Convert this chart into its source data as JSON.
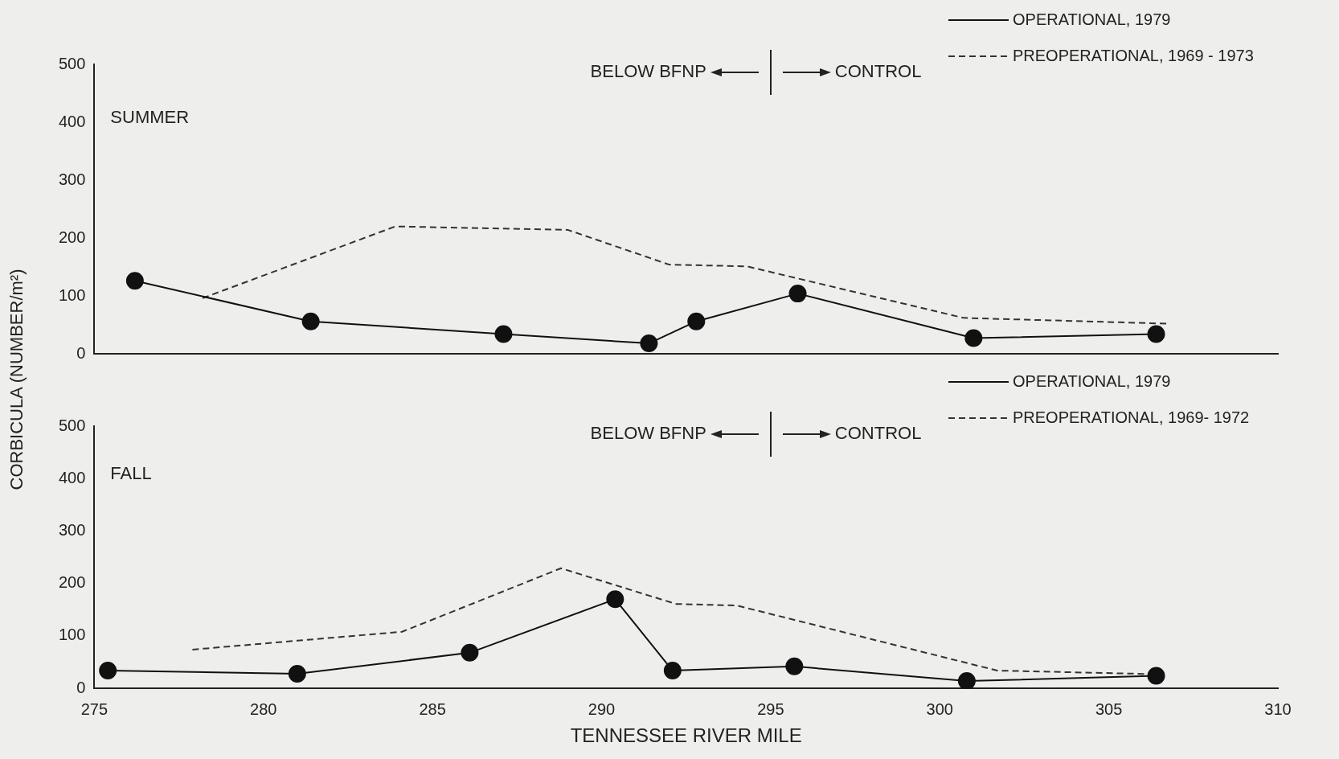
{
  "chart_data": [
    {
      "type": "line",
      "ylabel": "CORBICULA (NUMBER/m²)",
      "annotations": [
        "SUMMER",
        "BELOW BFNP",
        "CONTROL"
      ],
      "xlim": [
        275,
        310
      ],
      "xticks": [
        275,
        280,
        285,
        290,
        295,
        300,
        305,
        310
      ],
      "ylim": [
        0,
        500
      ],
      "yticks": [
        0,
        100,
        200,
        300,
        400,
        500
      ],
      "tick_labels": "y",
      "grid": false,
      "legend": "top right",
      "series": [
        {
          "name": "OPERATIONAL, 1979",
          "color": "#111111",
          "line_style": "solid",
          "marker": "circle",
          "x": [
            276.2,
            281.4,
            287.1,
            291.4,
            292.8,
            295.8,
            301.0,
            306.4
          ],
          "values": [
            126,
            56,
            34,
            18,
            56,
            104,
            27,
            34
          ]
        },
        {
          "name": "PREOPERATIONAL, 1969 - 1973",
          "color": "#333333",
          "line_style": "dashed",
          "marker": "none",
          "x": [
            278.2,
            283.9,
            289.0,
            292.0,
            294.3,
            300.7,
            306.7
          ],
          "values": [
            96,
            220,
            214,
            154,
            151,
            62,
            52
          ]
        }
      ]
    },
    {
      "type": "line",
      "xlabel": "TENNESSEE RIVER MILE",
      "annotations": [
        "FALL",
        "BELOW BFNP",
        "CONTROL"
      ],
      "xlim": [
        275,
        310
      ],
      "xticks": [
        275,
        280,
        285,
        290,
        295,
        300,
        305,
        310
      ],
      "ylim": [
        0,
        500
      ],
      "yticks": [
        0,
        100,
        200,
        300,
        400,
        500
      ],
      "grid": false,
      "legend": "top right",
      "series": [
        {
          "name": "OPERATIONAL, 1979",
          "color": "#111111",
          "line_style": "solid",
          "marker": "circle",
          "x": [
            275.4,
            281.0,
            286.1,
            290.4,
            292.1,
            295.7,
            300.8,
            306.4
          ],
          "values": [
            34,
            28,
            68,
            170,
            34,
            42,
            14,
            24
          ]
        },
        {
          "name": "PREOPERATIONAL, 1969- 1972",
          "color": "#333333",
          "line_style": "dashed",
          "marker": "none",
          "x": [
            277.9,
            281.0,
            284.1,
            288.8,
            292.2,
            294.0,
            301.7,
            306.5
          ],
          "values": [
            74,
            91,
            108,
            229,
            161,
            158,
            34,
            27
          ]
        }
      ]
    }
  ]
}
